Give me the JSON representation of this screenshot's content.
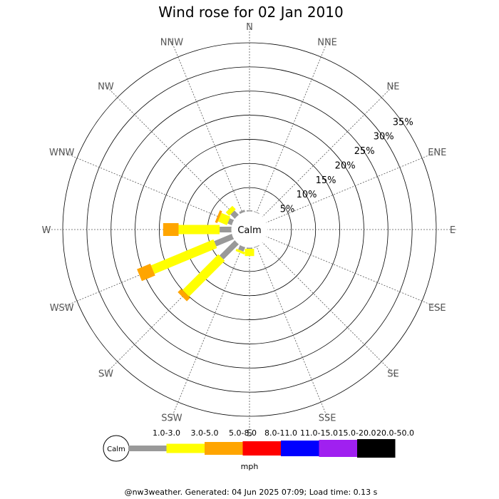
{
  "chart_data": {
    "type": "windrose",
    "title": "Wind rose for 02 Jan 2010",
    "center_label": "Calm",
    "directions": [
      "N",
      "NNE",
      "NE",
      "ENE",
      "E",
      "ESE",
      "SE",
      "SSE",
      "S",
      "SSW",
      "SW",
      "WSW",
      "W",
      "WNW",
      "NW",
      "NNW"
    ],
    "ring_labels": [
      "5%",
      "10%",
      "15%",
      "20%",
      "25%",
      "30%",
      "35%"
    ],
    "ring_values": [
      5,
      10,
      15,
      20,
      25,
      30,
      35
    ],
    "rmax": 35,
    "speed_bins": [
      {
        "label": "1.0-3.0",
        "color": "#999999"
      },
      {
        "label": "3.0-5.0",
        "color": "#ffff00"
      },
      {
        "label": "5.0-8.0",
        "color": "#ffa500"
      },
      {
        "label": "8.0-11.0",
        "color": "#ff0000"
      },
      {
        "label": "11.0-15.0",
        "color": "#0000ff"
      },
      {
        "label": "15.0-20.0",
        "color": "#a020f0"
      },
      {
        "label": "20.0-50.0",
        "color": "#000000"
      }
    ],
    "series": [
      {
        "name": "1.0-3.0",
        "values": {
          "N": 0.3,
          "NNE": 0.2,
          "SSE": 0.2,
          "S": 0.3,
          "SSW": 1.0,
          "SW": 4.5,
          "WSW": 4.0,
          "W": 2.5,
          "WNW": 1.0,
          "NW": 1.3,
          "NNW": 0.5
        }
      },
      {
        "name": "3.0-5.0",
        "values": {
          "S": 1.5,
          "SSW": 0.5,
          "SW": 10.5,
          "WSW": 14.0,
          "W": 8.5,
          "WNW": 2.0,
          "NW": 1.0
        }
      },
      {
        "name": "5.0-8.0",
        "values": {
          "SW": 1.0,
          "WSW": 3.0,
          "W": 3.2,
          "WNW": 0.5
        }
      }
    ],
    "legend_unit": "mph",
    "legend_center": "Calm"
  },
  "footer": "@nw3weather. Generated: 04 Jun 2025 07:09; Load time: 0.13 s"
}
